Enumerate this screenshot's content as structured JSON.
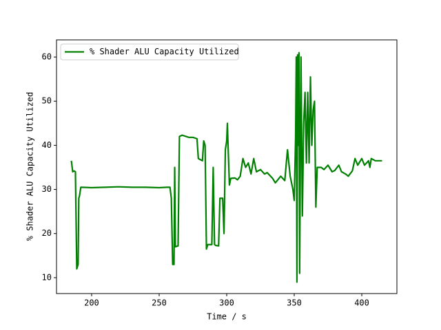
{
  "chart_data": {
    "type": "line",
    "xlabel": "Time / s",
    "ylabel": "% Shader ALU Capacity Utilized",
    "xlim": [
      174,
      426
    ],
    "ylim": [
      6.4,
      63.9
    ],
    "xticks": [
      200,
      250,
      300,
      350,
      400
    ],
    "yticks": [
      10,
      20,
      30,
      40,
      50,
      60
    ],
    "legend": "upper left",
    "x": [
      185,
      186,
      187,
      188,
      189,
      190,
      190.5,
      191,
      192,
      200,
      210,
      220,
      230,
      240,
      250,
      256,
      258,
      259,
      260,
      261,
      261.5,
      262,
      264,
      265,
      267,
      270,
      272,
      275,
      278,
      279,
      282,
      283,
      284,
      285,
      286,
      289,
      290,
      291,
      292,
      294,
      295,
      297,
      298,
      299,
      300,
      300.5,
      301,
      302,
      303,
      306,
      308,
      310,
      312,
      314,
      316,
      318,
      320,
      322,
      325,
      328,
      330,
      334,
      336,
      340,
      343,
      345,
      347,
      349,
      350,
      351,
      351.5,
      352,
      352.5,
      353,
      353.5,
      354,
      355,
      356,
      357,
      358,
      359,
      360,
      361,
      362,
      363,
      364,
      365,
      366,
      367,
      370,
      372,
      375,
      378,
      380,
      383,
      385,
      388,
      390,
      393,
      395,
      397,
      400,
      402,
      405,
      406,
      407,
      410,
      415
    ],
    "series": [
      {
        "name": "% Shader ALU Capacity Utilized",
        "color": "#008000",
        "values": [
          36.5,
          34,
          34.2,
          34,
          12,
          13,
          28,
          28.5,
          30.5,
          30.4,
          30.5,
          30.6,
          30.5,
          30.5,
          30.4,
          30.5,
          30.5,
          28,
          13,
          13,
          35,
          17,
          17.2,
          42,
          42.3,
          42,
          41.8,
          41.8,
          41.5,
          37,
          36.5,
          41,
          40,
          16.5,
          17.5,
          17.5,
          35,
          17.5,
          17.3,
          17.2,
          28,
          28,
          20,
          39,
          41,
          45,
          40,
          31,
          32.5,
          32.6,
          32.2,
          33,
          37,
          35,
          36,
          33.5,
          37,
          34,
          34.5,
          33.5,
          33.8,
          32.5,
          31.5,
          33,
          32,
          39,
          33,
          30,
          27.5,
          42,
          60,
          9,
          60.5,
          40,
          61,
          11,
          60,
          24,
          45,
          52,
          36,
          52,
          36,
          55.5,
          40,
          48,
          50,
          26,
          35,
          35,
          34.5,
          35.5,
          34,
          34.3,
          35.5,
          34,
          33.5,
          33,
          34.2,
          37,
          35.5,
          37,
          35.5,
          36.5,
          35,
          37,
          36.5,
          36.5
        ]
      }
    ]
  }
}
